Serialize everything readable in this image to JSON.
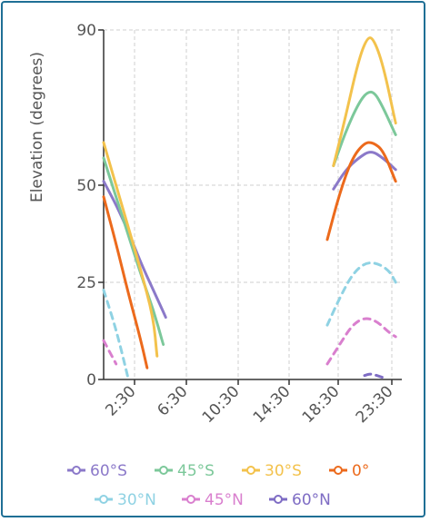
{
  "chart_data": {
    "type": "line",
    "title": "",
    "xlabel": "",
    "ylabel": "Elevation (degrees)",
    "ylim": [
      0,
      90
    ],
    "xlim": [
      0,
      24
    ],
    "y_ticks": [
      0,
      25,
      50,
      90
    ],
    "x_ticks": [
      "2:30",
      "6:30",
      "10:30",
      "14:30",
      "18:30",
      "23:30"
    ],
    "grid": true,
    "legend_position": "bottom",
    "series": [
      {
        "name": "60°S",
        "color": "#8b79c9",
        "dashed": false,
        "segments": [
          [
            [
              0,
              51
            ],
            [
              1,
              45
            ],
            [
              2,
              38
            ],
            [
              3,
              30
            ],
            [
              4,
              23
            ],
            [
              5,
              16
            ]
          ],
          [
            [
              18.5,
              49
            ],
            [
              19.5,
              54
            ],
            [
              20.5,
              57
            ],
            [
              21.5,
              59
            ],
            [
              22.5,
              57
            ],
            [
              23.5,
              54
            ]
          ]
        ]
      },
      {
        "name": "45°S",
        "color": "#7cc89a",
        "dashed": false,
        "segments": [
          [
            [
              0,
              57
            ],
            [
              1,
              47
            ],
            [
              2,
              37
            ],
            [
              3,
              27
            ],
            [
              4,
              18
            ],
            [
              4.8,
              9
            ]
          ],
          [
            [
              18.5,
              55
            ],
            [
              19.5,
              64
            ],
            [
              20.5,
              71
            ],
            [
              21.2,
              74
            ],
            [
              21.8,
              74
            ],
            [
              22.5,
              70
            ],
            [
              23.5,
              63
            ]
          ]
        ]
      },
      {
        "name": "30°S",
        "color": "#f3c24c",
        "dashed": false,
        "segments": [
          [
            [
              0,
              61
            ],
            [
              1,
              50
            ],
            [
              2,
              39
            ],
            [
              3,
              28
            ],
            [
              4,
              16
            ],
            [
              4.3,
              6
            ]
          ],
          [
            [
              18.5,
              55
            ],
            [
              19.5,
              68
            ],
            [
              20.5,
              82
            ],
            [
              21.2,
              88
            ],
            [
              21.7,
              88
            ],
            [
              22.5,
              81
            ],
            [
              23.5,
              66
            ]
          ]
        ]
      },
      {
        "name": "0°",
        "color": "#ec6a1c",
        "dashed": false,
        "segments": [
          [
            [
              0,
              47
            ],
            [
              1,
              35
            ],
            [
              2,
              22
            ],
            [
              3,
              10
            ],
            [
              3.5,
              3
            ]
          ],
          [
            [
              18,
              36
            ],
            [
              19,
              48
            ],
            [
              20,
              57
            ],
            [
              21,
              61
            ],
            [
              21.7,
              61
            ],
            [
              22.5,
              59
            ],
            [
              23.5,
              51
            ]
          ]
        ]
      },
      {
        "name": "30°N",
        "color": "#8fd2e3",
        "dashed": true,
        "segments": [
          [
            [
              0,
              23
            ],
            [
              1,
              13
            ],
            [
              2,
              0
            ]
          ],
          [
            [
              18,
              14
            ],
            [
              19,
              21
            ],
            [
              20,
              27
            ],
            [
              21,
              30
            ],
            [
              22,
              30
            ],
            [
              23,
              28
            ],
            [
              23.5,
              25
            ]
          ]
        ]
      },
      {
        "name": "45°N",
        "color": "#d97fce",
        "dashed": true,
        "segments": [
          [
            [
              0,
              10
            ],
            [
              0.5,
              7
            ],
            [
              1,
              4
            ]
          ],
          [
            [
              18,
              4
            ],
            [
              19,
              9
            ],
            [
              20,
              14
            ],
            [
              21,
              16
            ],
            [
              22,
              15
            ],
            [
              23,
              12
            ],
            [
              23.5,
              11
            ]
          ]
        ]
      },
      {
        "name": "60°N",
        "color": "#7e6cc4",
        "dashed": true,
        "segments": [
          [
            [
              21,
              1
            ],
            [
              21.5,
              1.5
            ],
            [
              22,
              1
            ],
            [
              22.5,
              0.5
            ]
          ]
        ]
      }
    ]
  }
}
